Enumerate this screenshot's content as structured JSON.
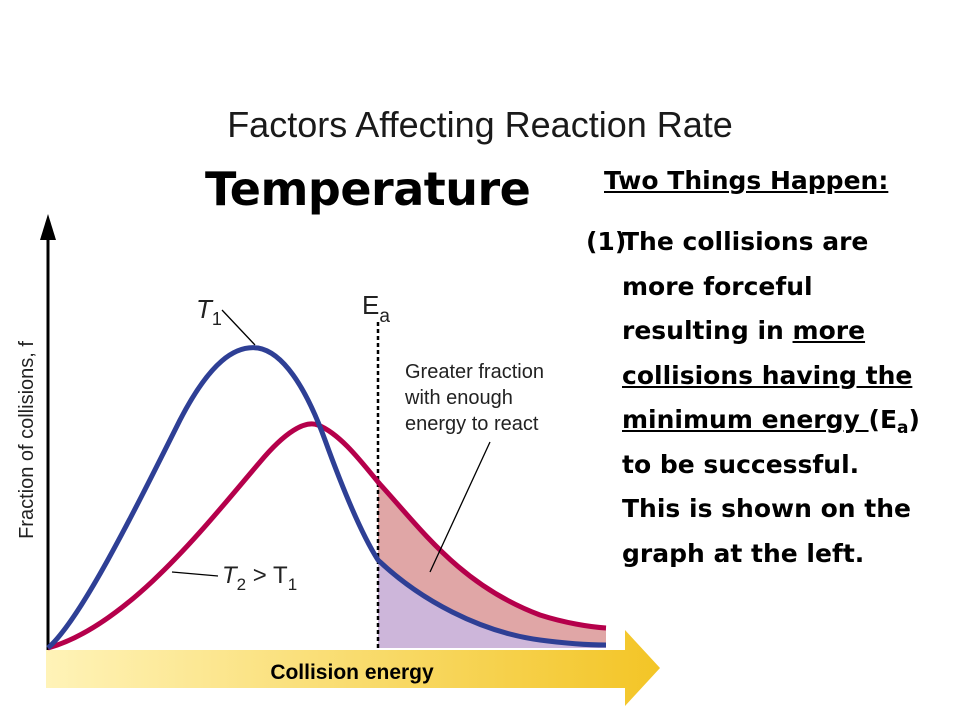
{
  "slide": {
    "title": "Factors Affecting Reaction Rate",
    "topic": "Temperature"
  },
  "side": {
    "heading": "Two Things Happen:",
    "item_number": "(1)",
    "line1": "The collisions are",
    "line2": "more forceful",
    "line3_plain": "resulting in ",
    "line3_underlined": "more",
    "line4_underlined": "collisions having the",
    "line5_underlined": "minimum energy ",
    "line5_paren_open": "(E",
    "line5_sub": "a",
    "line5_paren_close": ")",
    "line6": "to be successful.",
    "line7": "This is shown on the",
    "line8": "graph at the left."
  },
  "diagram": {
    "y_axis_label": "Fraction of collisions, f",
    "x_axis_label": "Collision energy",
    "curve_t1_label": "T",
    "curve_t1_sub": "1",
    "curve_t2_label": "T",
    "curve_t2_sub": "2",
    "curve_t2_gt": " > T",
    "curve_t2_sub2": "1",
    "threshold_label": "E",
    "threshold_sub": "a",
    "annotation_line1": "Greater fraction",
    "annotation_line2": "with enough",
    "annotation_line3": "energy to react",
    "colors": {
      "t1_curve": "#2e3f95",
      "t2_curve": "#b5004b",
      "t2_area": "#e0a6a6",
      "t1_area": "#cdb6da",
      "arrow_light": "#fff3b8",
      "arrow_dark": "#f3c526"
    }
  }
}
